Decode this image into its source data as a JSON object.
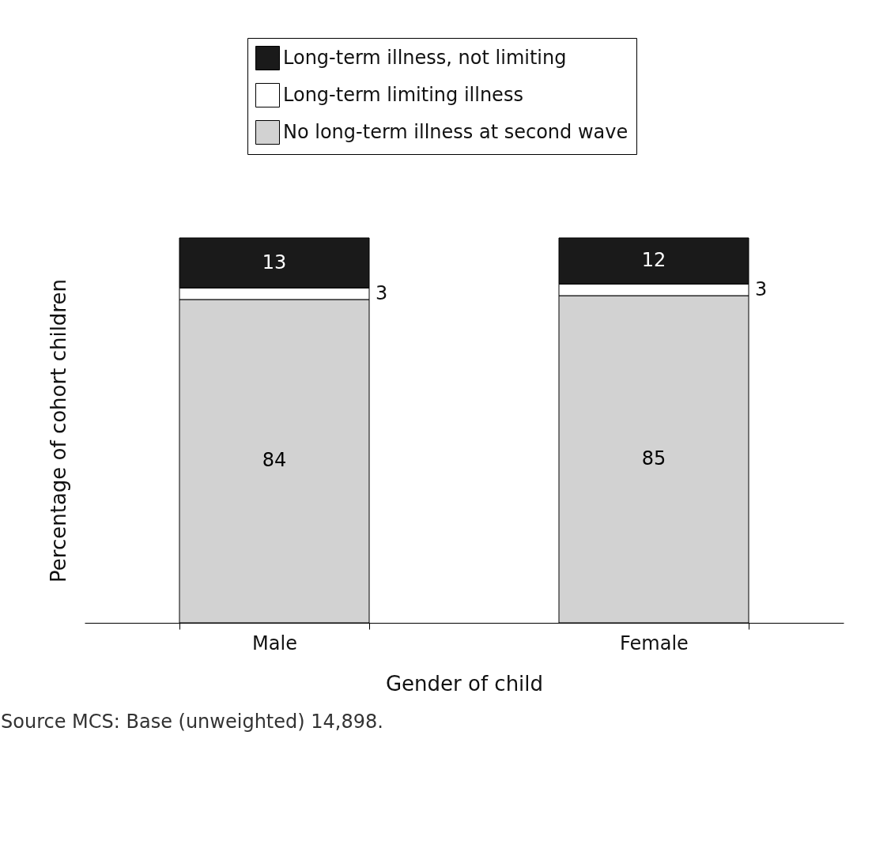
{
  "chart_data": {
    "type": "bar",
    "stacked": true,
    "xlabel": "Gender of child",
    "ylabel": "Percentage of cohort children",
    "categories": [
      "Male",
      "Female"
    ],
    "series": [
      {
        "name": "No long-term illness at second wave",
        "color": "#d2d2d2",
        "values": [
          84,
          85
        ]
      },
      {
        "name": "Long-term limiting illness",
        "color": "#ffffff",
        "values": [
          3,
          3
        ]
      },
      {
        "name": "Long-term illness, not limiting",
        "color": "#1a1a1a",
        "values": [
          13,
          12
        ]
      }
    ],
    "ylim": [
      0,
      100
    ],
    "tick_labels": "x",
    "data_labels": true,
    "legend": "top",
    "grid": false,
    "annotations": [
      "Source MCS: Base (unweighted) 14,898."
    ]
  }
}
